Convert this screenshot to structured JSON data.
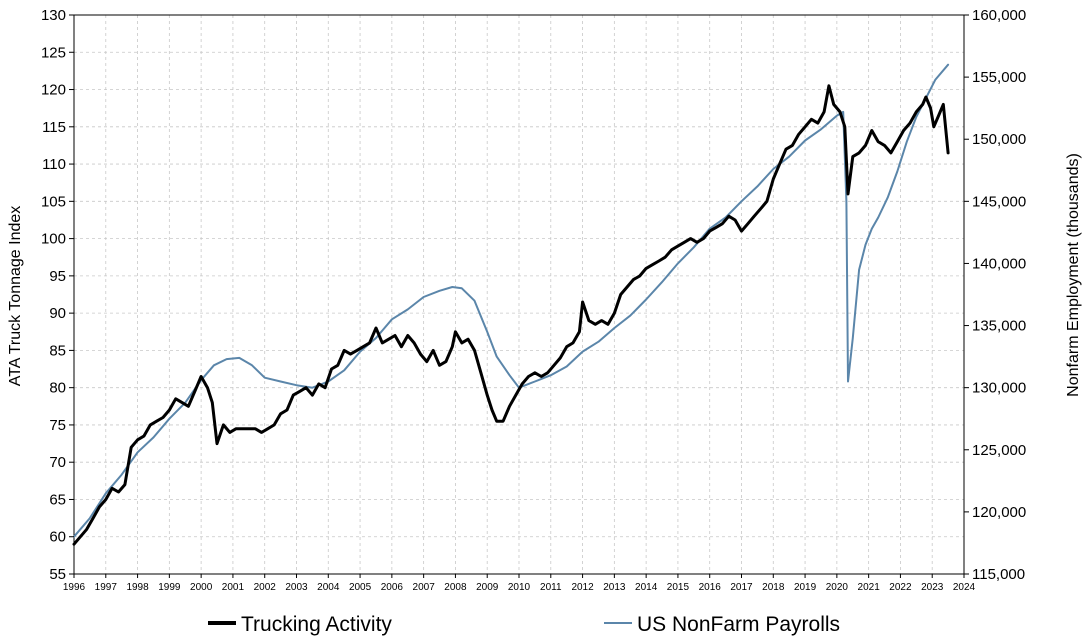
{
  "chart_data": {
    "type": "line",
    "ylabel_left": "ATA Truck Tonnage Index",
    "ylabel_right": "Nonfarm Employment (thousands)",
    "ylim_left": [
      55,
      130
    ],
    "ylim_right": [
      115000,
      160000
    ],
    "xlim": [
      1996,
      2024
    ],
    "grid": true,
    "legend_position": "bottom",
    "left_ticks": [
      "55",
      "60",
      "65",
      "70",
      "75",
      "80",
      "85",
      "90",
      "95",
      "100",
      "105",
      "110",
      "115",
      "120",
      "125",
      "130"
    ],
    "right_ticks": [
      "115,000",
      "120,000",
      "125,000",
      "130,000",
      "135,000",
      "140,000",
      "145,000",
      "150,000",
      "155,000",
      "160,000"
    ],
    "x_ticks": [
      "1996",
      "1997",
      "1998",
      "1999",
      "2000",
      "2001",
      "2002",
      "2003",
      "2004",
      "2005",
      "2006",
      "2007",
      "2008",
      "2009",
      "2010",
      "2011",
      "2012",
      "2013",
      "2014",
      "2015",
      "2016",
      "2017",
      "2018",
      "2019",
      "2020",
      "2021",
      "2022",
      "2023",
      "2024"
    ],
    "series": [
      {
        "name": "Trucking Activity",
        "axis": "left",
        "color": "#000000",
        "points": [
          [
            1996.0,
            59
          ],
          [
            1996.2,
            60
          ],
          [
            1996.4,
            61
          ],
          [
            1996.6,
            62.5
          ],
          [
            1996.8,
            64
          ],
          [
            1997.0,
            65
          ],
          [
            1997.2,
            66.5
          ],
          [
            1997.4,
            66
          ],
          [
            1997.6,
            67
          ],
          [
            1997.8,
            72
          ],
          [
            1998.0,
            73
          ],
          [
            1998.2,
            73.5
          ],
          [
            1998.4,
            75
          ],
          [
            1998.6,
            75.5
          ],
          [
            1998.8,
            76
          ],
          [
            1999.0,
            77
          ],
          [
            1999.2,
            78.5
          ],
          [
            1999.4,
            78
          ],
          [
            1999.6,
            77.5
          ],
          [
            1999.8,
            79.5
          ],
          [
            2000.0,
            81.5
          ],
          [
            2000.2,
            80
          ],
          [
            2000.35,
            78
          ],
          [
            2000.5,
            72.5
          ],
          [
            2000.7,
            75
          ],
          [
            2000.9,
            74
          ],
          [
            2001.1,
            74.5
          ],
          [
            2001.3,
            74.5
          ],
          [
            2001.5,
            74.5
          ],
          [
            2001.7,
            74.5
          ],
          [
            2001.9,
            74
          ],
          [
            2002.1,
            74.5
          ],
          [
            2002.3,
            75
          ],
          [
            2002.5,
            76.5
          ],
          [
            2002.7,
            77
          ],
          [
            2002.9,
            79
          ],
          [
            2003.1,
            79.5
          ],
          [
            2003.3,
            80
          ],
          [
            2003.5,
            79
          ],
          [
            2003.7,
            80.5
          ],
          [
            2003.9,
            80
          ],
          [
            2004.1,
            82.5
          ],
          [
            2004.3,
            83
          ],
          [
            2004.5,
            85
          ],
          [
            2004.7,
            84.5
          ],
          [
            2004.9,
            85
          ],
          [
            2005.1,
            85.5
          ],
          [
            2005.3,
            86
          ],
          [
            2005.5,
            88
          ],
          [
            2005.7,
            86
          ],
          [
            2005.9,
            86.5
          ],
          [
            2006.1,
            87
          ],
          [
            2006.3,
            85.5
          ],
          [
            2006.5,
            87
          ],
          [
            2006.7,
            86
          ],
          [
            2006.9,
            84.5
          ],
          [
            2007.1,
            83.5
          ],
          [
            2007.3,
            85
          ],
          [
            2007.5,
            83
          ],
          [
            2007.7,
            83.5
          ],
          [
            2007.9,
            85.5
          ],
          [
            2008.0,
            87.5
          ],
          [
            2008.2,
            86
          ],
          [
            2008.4,
            86.5
          ],
          [
            2008.6,
            85
          ],
          [
            2008.8,
            82
          ],
          [
            2009.0,
            79
          ],
          [
            2009.15,
            77
          ],
          [
            2009.3,
            75.5
          ],
          [
            2009.5,
            75.5
          ],
          [
            2009.7,
            77.5
          ],
          [
            2009.9,
            79
          ],
          [
            2010.1,
            80.5
          ],
          [
            2010.3,
            81.5
          ],
          [
            2010.5,
            82
          ],
          [
            2010.7,
            81.5
          ],
          [
            2010.9,
            82
          ],
          [
            2011.1,
            83
          ],
          [
            2011.3,
            84
          ],
          [
            2011.5,
            85.5
          ],
          [
            2011.7,
            86
          ],
          [
            2011.9,
            87.5
          ],
          [
            2012.0,
            91.5
          ],
          [
            2012.2,
            89
          ],
          [
            2012.4,
            88.5
          ],
          [
            2012.6,
            89
          ],
          [
            2012.8,
            88.5
          ],
          [
            2013.0,
            90
          ],
          [
            2013.2,
            92.5
          ],
          [
            2013.4,
            93.5
          ],
          [
            2013.6,
            94.5
          ],
          [
            2013.8,
            95
          ],
          [
            2014.0,
            96
          ],
          [
            2014.2,
            96.5
          ],
          [
            2014.4,
            97
          ],
          [
            2014.6,
            97.5
          ],
          [
            2014.8,
            98.5
          ],
          [
            2015.0,
            99
          ],
          [
            2015.2,
            99.5
          ],
          [
            2015.4,
            100
          ],
          [
            2015.6,
            99.5
          ],
          [
            2015.8,
            100
          ],
          [
            2016.0,
            101
          ],
          [
            2016.2,
            101.5
          ],
          [
            2016.4,
            102
          ],
          [
            2016.6,
            103
          ],
          [
            2016.8,
            102.5
          ],
          [
            2017.0,
            101
          ],
          [
            2017.2,
            102
          ],
          [
            2017.4,
            103
          ],
          [
            2017.6,
            104
          ],
          [
            2017.8,
            105
          ],
          [
            2018.0,
            108
          ],
          [
            2018.2,
            110
          ],
          [
            2018.4,
            112
          ],
          [
            2018.6,
            112.5
          ],
          [
            2018.8,
            114
          ],
          [
            2019.0,
            115
          ],
          [
            2019.2,
            116
          ],
          [
            2019.4,
            115.5
          ],
          [
            2019.6,
            117
          ],
          [
            2019.75,
            120.5
          ],
          [
            2019.9,
            118
          ],
          [
            2020.1,
            117
          ],
          [
            2020.25,
            115
          ],
          [
            2020.35,
            106
          ],
          [
            2020.5,
            111
          ],
          [
            2020.7,
            111.5
          ],
          [
            2020.9,
            112.5
          ],
          [
            2021.1,
            114.5
          ],
          [
            2021.3,
            113
          ],
          [
            2021.5,
            112.5
          ],
          [
            2021.7,
            111.5
          ],
          [
            2021.9,
            113
          ],
          [
            2022.1,
            114.5
          ],
          [
            2022.3,
            115.5
          ],
          [
            2022.5,
            117
          ],
          [
            2022.7,
            118
          ],
          [
            2022.8,
            119
          ],
          [
            2022.95,
            117.5
          ],
          [
            2023.05,
            115
          ],
          [
            2023.2,
            116.5
          ],
          [
            2023.35,
            118
          ],
          [
            2023.5,
            111.5
          ]
        ]
      },
      {
        "name": "US NonFarm Payrolls",
        "axis": "right",
        "color": "#5b86aa",
        "points": [
          [
            1996.0,
            118000
          ],
          [
            1996.5,
            119500
          ],
          [
            1997.0,
            121500
          ],
          [
            1997.5,
            123000
          ],
          [
            1998.0,
            124800
          ],
          [
            1998.5,
            126000
          ],
          [
            1999.0,
            127500
          ],
          [
            1999.5,
            128800
          ],
          [
            2000.0,
            130600
          ],
          [
            2000.4,
            131800
          ],
          [
            2000.8,
            132300
          ],
          [
            2001.2,
            132400
          ],
          [
            2001.6,
            131800
          ],
          [
            2002.0,
            130800
          ],
          [
            2002.5,
            130500
          ],
          [
            2003.0,
            130200
          ],
          [
            2003.5,
            130000
          ],
          [
            2004.0,
            130500
          ],
          [
            2004.5,
            131400
          ],
          [
            2005.0,
            132900
          ],
          [
            2005.5,
            134000
          ],
          [
            2006.0,
            135500
          ],
          [
            2006.5,
            136300
          ],
          [
            2007.0,
            137300
          ],
          [
            2007.5,
            137800
          ],
          [
            2007.9,
            138100
          ],
          [
            2008.2,
            138000
          ],
          [
            2008.6,
            137000
          ],
          [
            2009.0,
            134500
          ],
          [
            2009.3,
            132500
          ],
          [
            2009.7,
            131000
          ],
          [
            2010.0,
            130000
          ],
          [
            2010.5,
            130500
          ],
          [
            2011.0,
            131000
          ],
          [
            2011.5,
            131700
          ],
          [
            2012.0,
            132900
          ],
          [
            2012.5,
            133700
          ],
          [
            2013.0,
            134800
          ],
          [
            2013.5,
            135800
          ],
          [
            2014.0,
            137100
          ],
          [
            2014.5,
            138500
          ],
          [
            2015.0,
            140000
          ],
          [
            2015.5,
            141300
          ],
          [
            2016.0,
            142800
          ],
          [
            2016.5,
            143700
          ],
          [
            2017.0,
            145000
          ],
          [
            2017.5,
            146200
          ],
          [
            2018.0,
            147600
          ],
          [
            2018.5,
            148600
          ],
          [
            2019.0,
            149900
          ],
          [
            2019.5,
            150800
          ],
          [
            2020.0,
            151900
          ],
          [
            2020.2,
            152200
          ],
          [
            2020.3,
            145000
          ],
          [
            2020.35,
            130500
          ],
          [
            2020.5,
            134000
          ],
          [
            2020.7,
            139500
          ],
          [
            2020.9,
            141500
          ],
          [
            2021.1,
            142800
          ],
          [
            2021.3,
            143700
          ],
          [
            2021.6,
            145300
          ],
          [
            2021.9,
            147400
          ],
          [
            2022.2,
            149800
          ],
          [
            2022.5,
            151800
          ],
          [
            2022.8,
            153300
          ],
          [
            2023.1,
            154800
          ],
          [
            2023.5,
            156000
          ]
        ]
      }
    ]
  }
}
